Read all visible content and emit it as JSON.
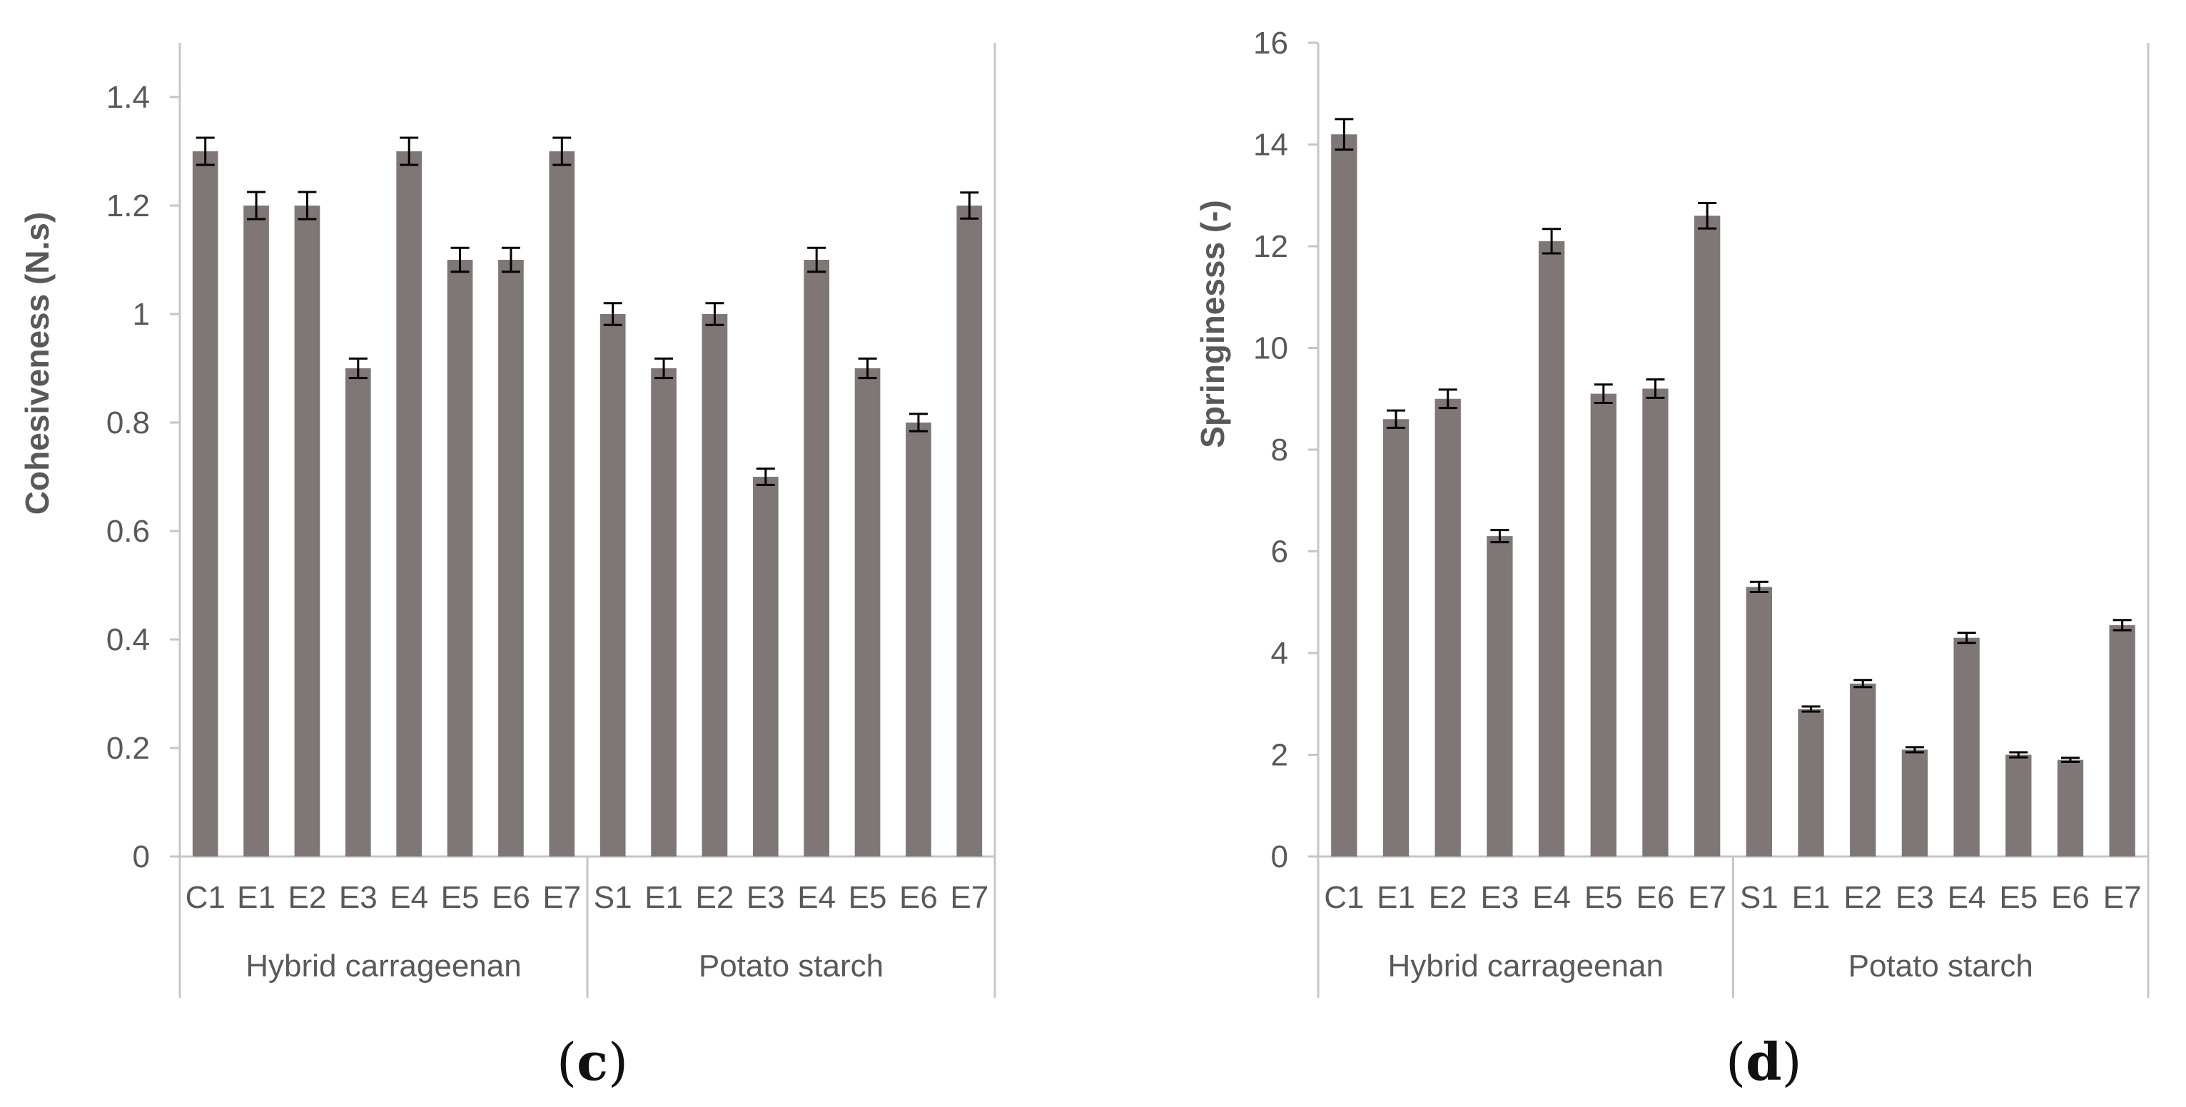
{
  "charts": [
    {
      "type": "bar",
      "ylabel": "Cohesiveness (N.s)",
      "ylim": [
        0,
        1.5
      ],
      "yticks": [
        0,
        0.2,
        0.4,
        0.6,
        0.8,
        1,
        1.2,
        1.4
      ],
      "categories": [
        "C1",
        "E1",
        "E2",
        "E3",
        "E4",
        "E5",
        "E6",
        "E7",
        "S1",
        "E1",
        "E2",
        "E3",
        "E4",
        "E5",
        "E6",
        "E7"
      ],
      "groups": [
        {
          "label": "Hybrid carrageenan",
          "start": 0,
          "count": 8
        },
        {
          "label": "Potato starch",
          "start": 8,
          "count": 8
        }
      ],
      "values": [
        1.3,
        1.2,
        1.2,
        0.9,
        1.3,
        1.1,
        1.1,
        1.3,
        1.0,
        0.9,
        1.0,
        0.7,
        1.1,
        0.9,
        0.8,
        1.2
      ],
      "errors": [
        0.025,
        0.025,
        0.025,
        0.018,
        0.025,
        0.022,
        0.022,
        0.025,
        0.02,
        0.018,
        0.02,
        0.015,
        0.022,
        0.018,
        0.016,
        0.024
      ],
      "panel_open": "(",
      "panel_letter": "c",
      "panel_close": ")",
      "bar_color": "#7f7776"
    },
    {
      "type": "bar",
      "ylabel": "Springinesss (-)",
      "ylim": [
        0,
        16
      ],
      "yticks": [
        0,
        2,
        4,
        6,
        8,
        10,
        12,
        14,
        16
      ],
      "categories": [
        "C1",
        "E1",
        "E2",
        "E3",
        "E4",
        "E5",
        "E6",
        "E7",
        "S1",
        "E1",
        "E2",
        "E3",
        "E4",
        "E5",
        "E6",
        "E7"
      ],
      "groups": [
        {
          "label": "Hybrid carrageenan",
          "start": 0,
          "count": 8
        },
        {
          "label": "Potato starch",
          "start": 8,
          "count": 8
        }
      ],
      "values": [
        14.2,
        8.6,
        9.0,
        6.3,
        12.1,
        9.1,
        9.2,
        12.6,
        5.3,
        2.9,
        3.4,
        2.1,
        4.3,
        2.0,
        1.9,
        4.55
      ],
      "errors": [
        0.3,
        0.17,
        0.18,
        0.12,
        0.24,
        0.18,
        0.18,
        0.25,
        0.1,
        0.05,
        0.07,
        0.05,
        0.1,
        0.05,
        0.04,
        0.1
      ],
      "panel_open": "(",
      "panel_letter": "d",
      "panel_close": ")",
      "bar_color": "#7f7776"
    }
  ]
}
